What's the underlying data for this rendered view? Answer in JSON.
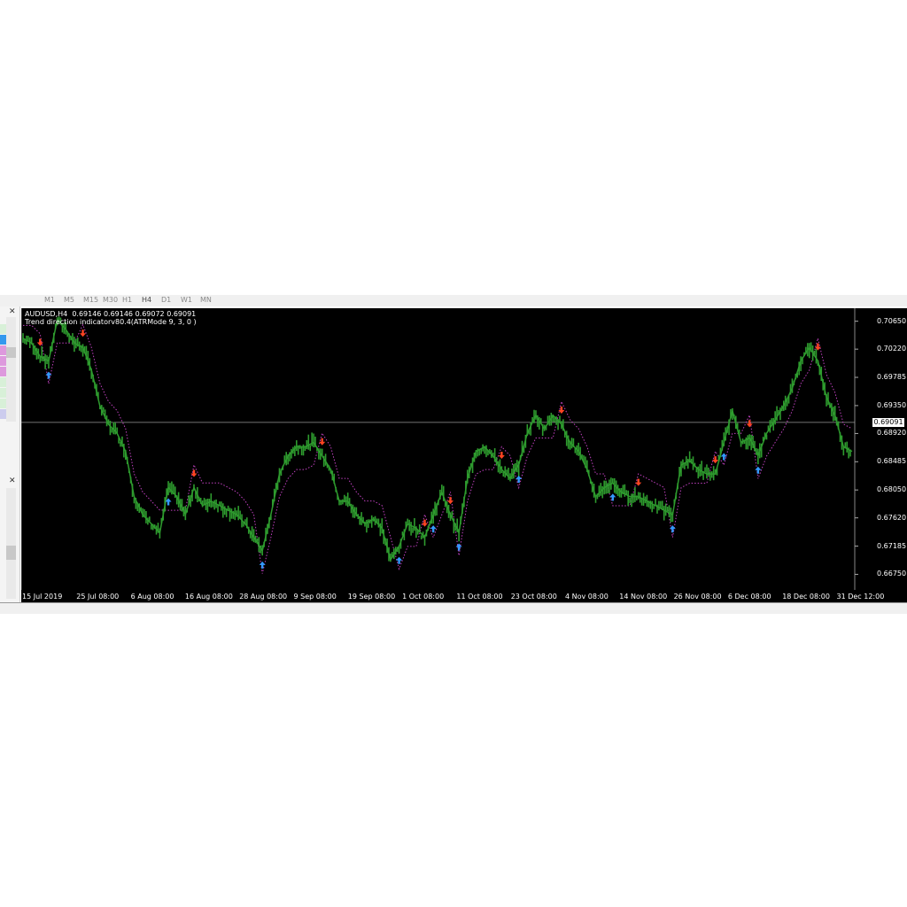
{
  "toolbar": {
    "timeframes": [
      "M1",
      "M5",
      "M15",
      "M30",
      "H1",
      "H4",
      "D1",
      "W1",
      "MN"
    ],
    "active": "H4"
  },
  "chart": {
    "symbol_line": "AUDUSD,H4  0.69146 0.69146 0.69072 0.69091",
    "indicator_line": "Trend direction indicatorv80.4(ATRMode 9, 3, 0 )",
    "current_price": "0.69091",
    "background": "#000000",
    "price_color": "#2e9b2e",
    "stop_color": "#c040c0",
    "up_arrow_color": "#3399ff",
    "down_arrow_color": "#ff4422"
  },
  "chart_data": {
    "type": "line",
    "ylim": [
      0.6651,
      0.7085
    ],
    "y_ticks": [
      "0.70650",
      "0.70220",
      "0.69785",
      "0.69350",
      "0.68920",
      "0.68485",
      "0.68050",
      "0.67620",
      "0.67185",
      "0.66750"
    ],
    "x_ticks": [
      "15 Jul 2019",
      "25 Jul 08:00",
      "6 Aug 08:00",
      "16 Aug 08:00",
      "28 Aug 08:00",
      "9 Sep 08:00",
      "19 Sep 08:00",
      "1 Oct 08:00",
      "11 Oct 08:00",
      "23 Oct 08:00",
      "4 Nov 08:00",
      "14 Nov 08:00",
      "26 Nov 08:00",
      "6 Dec 08:00",
      "18 Dec 08:00",
      "31 Dec 12:00"
    ],
    "price": [
      0.70385,
      0.70316,
      0.70107,
      0.70037,
      0.70664,
      0.70525,
      0.70316,
      0.70246,
      0.69898,
      0.69341,
      0.69062,
      0.68923,
      0.68644,
      0.67948,
      0.67669,
      0.6753,
      0.6739,
      0.68087,
      0.67948,
      0.67669,
      0.68087,
      0.67808,
      0.67878,
      0.67808,
      0.67739,
      0.67669,
      0.6753,
      0.67321,
      0.67112,
      0.67669,
      0.68296,
      0.68575,
      0.68714,
      0.68714,
      0.68783,
      0.68575,
      0.68366,
      0.67878,
      0.67878,
      0.67669,
      0.6753,
      0.67599,
      0.6746,
      0.66973,
      0.67182,
      0.6753,
      0.6746,
      0.67321,
      0.67669,
      0.68017,
      0.67669,
      0.6739,
      0.68226,
      0.68644,
      0.68714,
      0.68575,
      0.68366,
      0.68226,
      0.68435,
      0.68923,
      0.69201,
      0.68992,
      0.69201,
      0.69062,
      0.68783,
      0.68644,
      0.68366,
      0.67948,
      0.68087,
      0.68157,
      0.68017,
      0.67948,
      0.67948,
      0.67878,
      0.67808,
      0.67739,
      0.67669,
      0.68435,
      0.68505,
      0.68366,
      0.68296,
      0.68296,
      0.68783,
      0.69271,
      0.68783,
      0.68853,
      0.68575,
      0.68923,
      0.69132,
      0.69341,
      0.69619,
      0.70037,
      0.70246,
      0.70037,
      0.6948,
      0.69201,
      0.68714,
      0.68644
    ],
    "signals": [
      {
        "i": 2,
        "dir": "down"
      },
      {
        "i": 3,
        "dir": "up"
      },
      {
        "i": 7,
        "dir": "down"
      },
      {
        "i": 17,
        "dir": "up"
      },
      {
        "i": 20,
        "dir": "down"
      },
      {
        "i": 28,
        "dir": "up"
      },
      {
        "i": 35,
        "dir": "down"
      },
      {
        "i": 44,
        "dir": "up"
      },
      {
        "i": 47,
        "dir": "down"
      },
      {
        "i": 48,
        "dir": "up"
      },
      {
        "i": 50,
        "dir": "down"
      },
      {
        "i": 51,
        "dir": "up"
      },
      {
        "i": 56,
        "dir": "down"
      },
      {
        "i": 58,
        "dir": "up"
      },
      {
        "i": 63,
        "dir": "down"
      },
      {
        "i": 69,
        "dir": "up"
      },
      {
        "i": 72,
        "dir": "down"
      },
      {
        "i": 76,
        "dir": "up"
      },
      {
        "i": 81,
        "dir": "down"
      },
      {
        "i": 82,
        "dir": "up"
      },
      {
        "i": 85,
        "dir": "down"
      },
      {
        "i": 86,
        "dir": "up"
      },
      {
        "i": 93,
        "dir": "down"
      }
    ]
  }
}
